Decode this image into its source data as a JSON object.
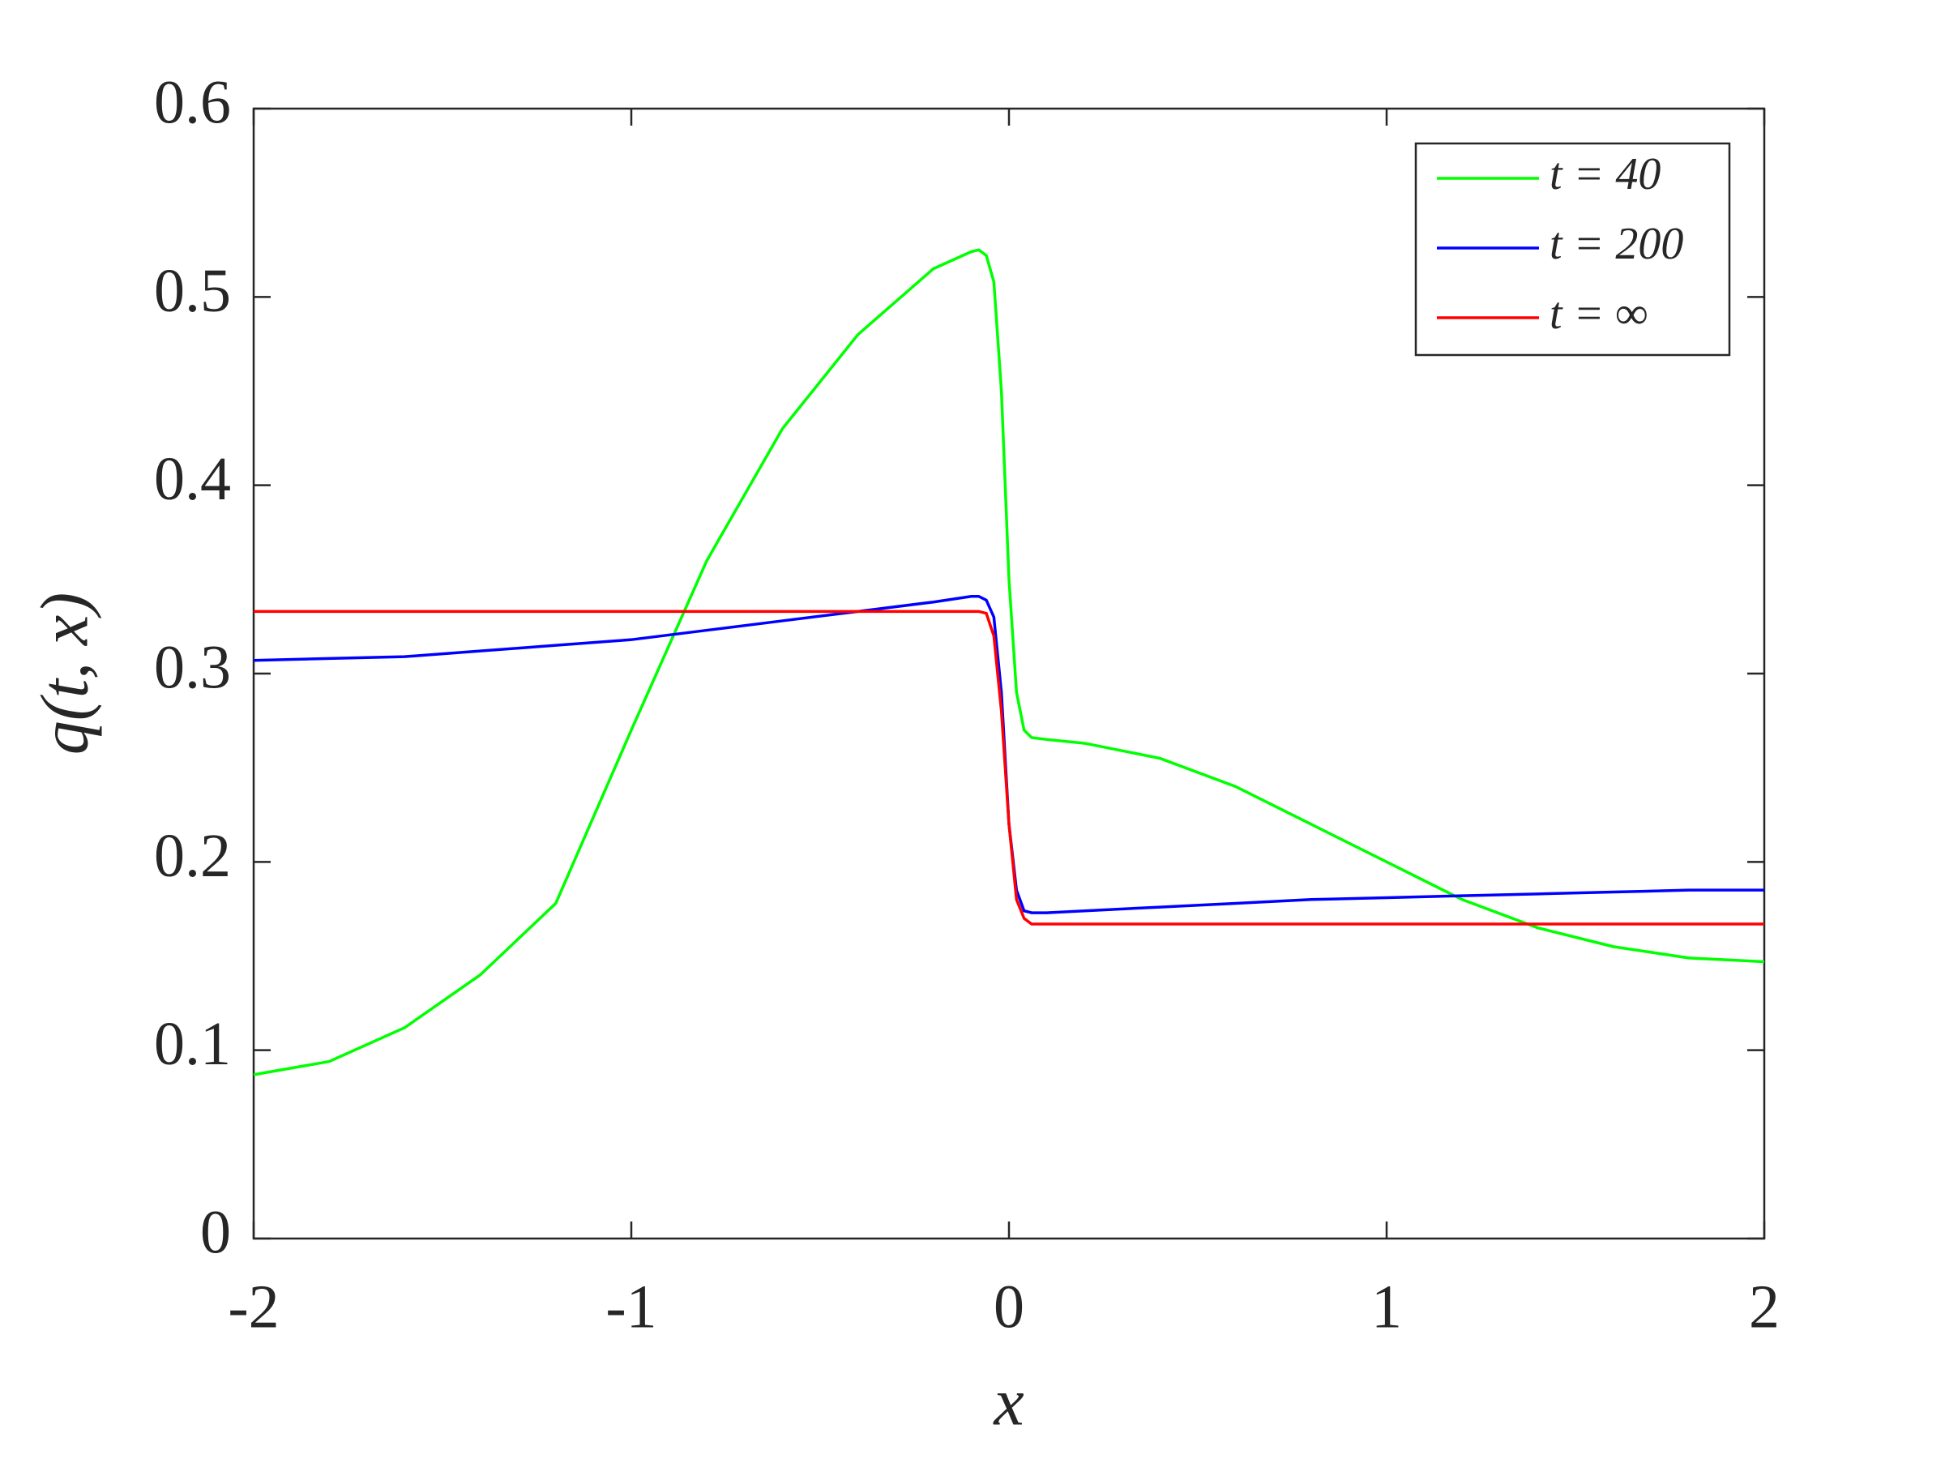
{
  "chart_data": {
    "type": "line",
    "xlabel": "x",
    "ylabel": "q(t, x)",
    "x": [
      -2,
      -1.8,
      -1.6,
      -1.4,
      -1.2,
      -1.0,
      -0.8,
      -0.6,
      -0.4,
      -0.2,
      -0.1,
      -0.08,
      -0.06,
      -0.04,
      -0.02,
      0,
      0.02,
      0.04,
      0.06,
      0.1,
      0.2,
      0.4,
      0.6,
      0.8,
      1.0,
      1.2,
      1.4,
      1.6,
      1.8,
      2.0
    ],
    "series": [
      {
        "name": "t = 40",
        "color": "#00ff00",
        "values": [
          0.087,
          0.094,
          0.112,
          0.14,
          0.178,
          0.27,
          0.36,
          0.43,
          0.48,
          0.515,
          0.524,
          0.525,
          0.522,
          0.508,
          0.45,
          0.35,
          0.29,
          0.27,
          0.266,
          0.265,
          0.263,
          0.255,
          0.24,
          0.22,
          0.2,
          0.18,
          0.165,
          0.155,
          0.149,
          0.147
        ]
      },
      {
        "name": "t = 200",
        "color": "#0000ff",
        "values": [
          0.307,
          0.308,
          0.309,
          0.312,
          0.315,
          0.318,
          0.323,
          0.328,
          0.333,
          0.338,
          0.341,
          0.341,
          0.339,
          0.33,
          0.29,
          0.22,
          0.185,
          0.174,
          0.173,
          0.173,
          0.174,
          0.176,
          0.178,
          0.18,
          0.181,
          0.182,
          0.183,
          0.184,
          0.185,
          0.185
        ]
      },
      {
        "name": "t = ∞",
        "color": "#ff0000",
        "values": [
          0.333,
          0.333,
          0.333,
          0.333,
          0.333,
          0.333,
          0.333,
          0.333,
          0.333,
          0.333,
          0.333,
          0.333,
          0.332,
          0.32,
          0.28,
          0.22,
          0.18,
          0.17,
          0.167,
          0.167,
          0.167,
          0.167,
          0.167,
          0.167,
          0.167,
          0.167,
          0.167,
          0.167,
          0.167,
          0.167
        ]
      }
    ],
    "xlim": [
      -2,
      2
    ],
    "xticks": [
      -2,
      -1,
      0,
      1,
      2
    ],
    "ylim": [
      0,
      0.6
    ],
    "yticks": [
      0,
      0.1,
      0.2,
      0.3,
      0.4,
      0.5,
      0.6
    ],
    "legend": "upper right"
  }
}
